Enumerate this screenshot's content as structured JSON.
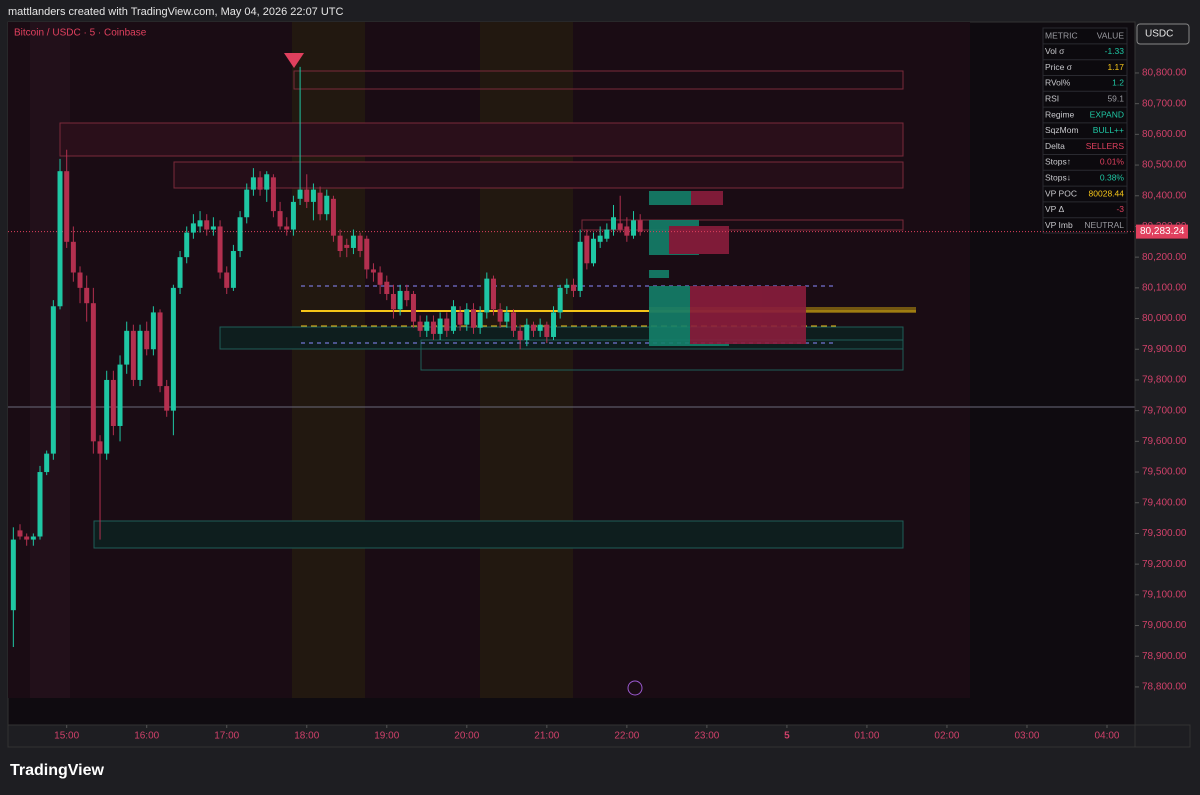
{
  "header": {
    "title": "mattlanders created with TradingView.com, May 04, 2026 22:07 UTC",
    "logo": "TradingView"
  },
  "chart_data": {
    "type": "candlestick",
    "title": "Bitcoin / USDC · 5 · Coinbase",
    "currency": "USDC",
    "up_color": "#1fc7a4",
    "down_color": "#b3304f",
    "ylim": [
      78676,
      80966
    ],
    "yticks": [
      {
        "value": 78800,
        "label": "78,800.00"
      },
      {
        "value": 78900,
        "label": "78,900.00"
      },
      {
        "value": 79000,
        "label": "79,000.00"
      },
      {
        "value": 79100,
        "label": "79,100.00"
      },
      {
        "value": 79200,
        "label": "79,200.00"
      },
      {
        "value": 79300,
        "label": "79,300.00"
      },
      {
        "value": 79400,
        "label": "79,400.00"
      },
      {
        "value": 79500,
        "label": "79,500.00"
      },
      {
        "value": 79600,
        "label": "79,600.00"
      },
      {
        "value": 79700,
        "label": "79,700.00"
      },
      {
        "value": 79800,
        "label": "79,800.00"
      },
      {
        "value": 79900,
        "label": "79,900.00"
      },
      {
        "value": 80000,
        "label": "80,000.00"
      },
      {
        "value": 80100,
        "label": "80,100.00"
      },
      {
        "value": 80200,
        "label": "80,200.00"
      },
      {
        "value": 80300,
        "label": "80,300.00"
      },
      {
        "value": 80400,
        "label": "80,400.00"
      },
      {
        "value": 80500,
        "label": "80,500.00"
      },
      {
        "value": 80600,
        "label": "80,600.00"
      },
      {
        "value": 80700,
        "label": "80,700.00"
      },
      {
        "value": 80800,
        "label": "80,800.00"
      }
    ],
    "xlim": [
      "14:16",
      "04:21"
    ],
    "xticks": [
      "15:00",
      "16:00",
      "17:00",
      "18:00",
      "19:00",
      "20:00",
      "21:00",
      "22:00",
      "23:00",
      {
        "value": "00:00",
        "label": "5"
      },
      "01:00",
      "02:00",
      "03:00",
      "04:00"
    ],
    "last_price": {
      "value": 80283.24,
      "label": "80,283.24"
    },
    "x": [
      "14:20",
      "14:25",
      "14:30",
      "14:35",
      "14:40",
      "14:45",
      "14:50",
      "14:55",
      "15:00",
      "15:05",
      "15:10",
      "15:15",
      "15:20",
      "15:25",
      "15:30",
      "15:35",
      "15:40",
      "15:45",
      "15:50",
      "15:55",
      "16:00",
      "16:05",
      "16:10",
      "16:15",
      "16:20",
      "16:25",
      "16:30",
      "16:35",
      "16:40",
      "16:45",
      "16:50",
      "16:55",
      "17:00",
      "17:05",
      "17:10",
      "17:15",
      "17:20",
      "17:25",
      "17:30",
      "17:35",
      "17:40",
      "17:45",
      "17:50",
      "17:55",
      "18:00",
      "18:05",
      "18:10",
      "18:15",
      "18:20",
      "18:25",
      "18:30",
      "18:35",
      "18:40",
      "18:45",
      "18:50",
      "18:55",
      "19:00",
      "19:05",
      "19:10",
      "19:15",
      "19:20",
      "19:25",
      "19:30",
      "19:35",
      "19:40",
      "19:45",
      "19:50",
      "19:55",
      "20:00",
      "20:05",
      "20:10",
      "20:15",
      "20:20",
      "20:25",
      "20:30",
      "20:35",
      "20:40",
      "20:45",
      "20:50",
      "20:55",
      "21:00",
      "21:05",
      "21:10",
      "21:15",
      "21:20",
      "21:25",
      "21:30",
      "21:35",
      "21:40",
      "21:45",
      "21:50",
      "21:55",
      "22:00",
      "22:05",
      "22:10"
    ],
    "ohlc": [
      [
        79050,
        79320,
        78930,
        79280
      ],
      [
        79310,
        79330,
        79280,
        79290
      ],
      [
        79290,
        79300,
        79260,
        79280
      ],
      [
        79280,
        79300,
        79260,
        79290
      ],
      [
        79290,
        79520,
        79280,
        79500
      ],
      [
        79500,
        79570,
        79490,
        79560
      ],
      [
        79560,
        80060,
        79540,
        80040
      ],
      [
        80040,
        80520,
        80030,
        80480
      ],
      [
        80480,
        80550,
        80230,
        80250
      ],
      [
        80250,
        80300,
        80120,
        80150
      ],
      [
        80150,
        80170,
        80050,
        80100
      ],
      [
        80100,
        80140,
        79990,
        80050
      ],
      [
        80050,
        80100,
        79560,
        79600
      ],
      [
        79600,
        79620,
        79280,
        79560
      ],
      [
        79560,
        79830,
        79540,
        79800
      ],
      [
        79800,
        79830,
        79620,
        79650
      ],
      [
        79650,
        79880,
        79600,
        79850
      ],
      [
        79850,
        79990,
        79820,
        79960
      ],
      [
        79960,
        79980,
        79780,
        79800
      ],
      [
        79800,
        79980,
        79780,
        79960
      ],
      [
        79960,
        79990,
        79880,
        79900
      ],
      [
        79900,
        80040,
        79880,
        80020
      ],
      [
        80020,
        80030,
        79760,
        79780
      ],
      [
        79780,
        79800,
        79680,
        79700
      ],
      [
        79700,
        80110,
        79620,
        80100
      ],
      [
        80100,
        80220,
        80080,
        80200
      ],
      [
        80200,
        80300,
        80180,
        80280
      ],
      [
        80280,
        80340,
        80260,
        80310
      ],
      [
        80300,
        80350,
        80280,
        80320
      ],
      [
        80320,
        80340,
        80270,
        80290
      ],
      [
        80290,
        80330,
        80270,
        80300
      ],
      [
        80300,
        80320,
        80130,
        80150
      ],
      [
        80150,
        80170,
        80080,
        80100
      ],
      [
        80100,
        80240,
        80090,
        80220
      ],
      [
        80220,
        80350,
        80200,
        80330
      ],
      [
        80330,
        80440,
        80310,
        80420
      ],
      [
        80420,
        80490,
        80400,
        80460
      ],
      [
        80460,
        80480,
        80400,
        80420
      ],
      [
        80420,
        80480,
        80380,
        80470
      ],
      [
        80460,
        80470,
        80330,
        80350
      ],
      [
        80350,
        80380,
        80290,
        80300
      ],
      [
        80300,
        80330,
        80270,
        80290
      ],
      [
        80290,
        80400,
        80270,
        80380
      ],
      [
        80390,
        80820,
        80370,
        80420
      ],
      [
        80420,
        80470,
        80360,
        80380
      ],
      [
        80380,
        80440,
        80320,
        80420
      ],
      [
        80410,
        80430,
        80320,
        80340
      ],
      [
        80340,
        80420,
        80320,
        80400
      ],
      [
        80390,
        80400,
        80250,
        80270
      ],
      [
        80270,
        80290,
        80200,
        80220
      ],
      [
        80240,
        80260,
        80200,
        80230
      ],
      [
        80230,
        80290,
        80210,
        80270
      ],
      [
        80270,
        80280,
        80200,
        80220
      ],
      [
        80260,
        80270,
        80130,
        80160
      ],
      [
        80160,
        80180,
        80120,
        80150
      ],
      [
        80150,
        80170,
        80080,
        80110
      ],
      [
        80120,
        80140,
        80060,
        80080
      ],
      [
        80080,
        80110,
        80000,
        80030
      ],
      [
        80030,
        80110,
        80010,
        80090
      ],
      [
        80090,
        80110,
        80040,
        80060
      ],
      [
        80080,
        80090,
        79970,
        79990
      ],
      [
        79990,
        80010,
        79940,
        79960
      ],
      [
        79960,
        80010,
        79940,
        79990
      ],
      [
        79990,
        80010,
        79930,
        79950
      ],
      [
        79950,
        80020,
        79930,
        80000
      ],
      [
        80000,
        80020,
        79940,
        79960
      ],
      [
        79960,
        80060,
        79950,
        80040
      ],
      [
        80020,
        80040,
        79960,
        79980
      ],
      [
        79980,
        80050,
        79960,
        80030
      ],
      [
        80030,
        80050,
        79950,
        79970
      ],
      [
        79970,
        80040,
        79950,
        80020
      ],
      [
        80020,
        80150,
        80000,
        80130
      ],
      [
        80130,
        80140,
        80010,
        80030
      ],
      [
        80030,
        80050,
        79970,
        79990
      ],
      [
        79990,
        80040,
        79970,
        80020
      ],
      [
        80020,
        80030,
        79940,
        79960
      ],
      [
        79960,
        79980,
        79900,
        79930
      ],
      [
        79930,
        80000,
        79910,
        79980
      ],
      [
        79980,
        79990,
        79940,
        79960
      ],
      [
        79960,
        80000,
        79940,
        79980
      ],
      [
        79980,
        79990,
        79920,
        79940
      ],
      [
        79940,
        80040,
        79930,
        80020
      ],
      [
        80020,
        80110,
        80000,
        80100
      ],
      [
        80100,
        80130,
        80080,
        80110
      ],
      [
        80110,
        80130,
        80070,
        80090
      ],
      [
        80090,
        80290,
        80070,
        80250
      ],
      [
        80270,
        80290,
        80160,
        80180
      ],
      [
        80180,
        80280,
        80170,
        80260
      ],
      [
        80250,
        80300,
        80230,
        80270
      ],
      [
        80260,
        80310,
        80250,
        80290
      ],
      [
        80290,
        80370,
        80270,
        80330
      ],
      [
        80310,
        80400,
        80280,
        80290
      ],
      [
        80300,
        80330,
        80250,
        80270
      ],
      [
        80270,
        80350,
        80260,
        80320
      ],
      [
        80320,
        80340,
        80270,
        80283.24
      ]
    ]
  },
  "table": {
    "header": [
      "METRIC",
      "VALUE"
    ],
    "rows": [
      [
        "Vol σ",
        "-1.33"
      ],
      [
        "Price σ",
        "1.17"
      ],
      [
        "RVol%",
        "1.2"
      ],
      [
        "RSI",
        "59.1"
      ],
      [
        "Regime",
        "EXPAND"
      ],
      [
        "SqzMom",
        "BULL++"
      ],
      [
        "Delta",
        "SELLERS"
      ],
      [
        "Stops↑",
        "0.01%"
      ],
      [
        "Stops↓",
        "0.38%"
      ],
      [
        "VP POC",
        "80028.44"
      ],
      [
        "VP Δ",
        "-3"
      ],
      [
        "VP Imb",
        "NEUTRAL"
      ]
    ],
    "value_colors": [
      "#1fc7a4",
      "#f5c518",
      "#1fc7a4",
      "#9a9aa0",
      "#1fc7a4",
      "#1fc7a4",
      "#e0405e",
      "#e0405e",
      "#1fc7a4",
      "#f5c518",
      "#e0405e",
      "#9a9aa0"
    ]
  }
}
